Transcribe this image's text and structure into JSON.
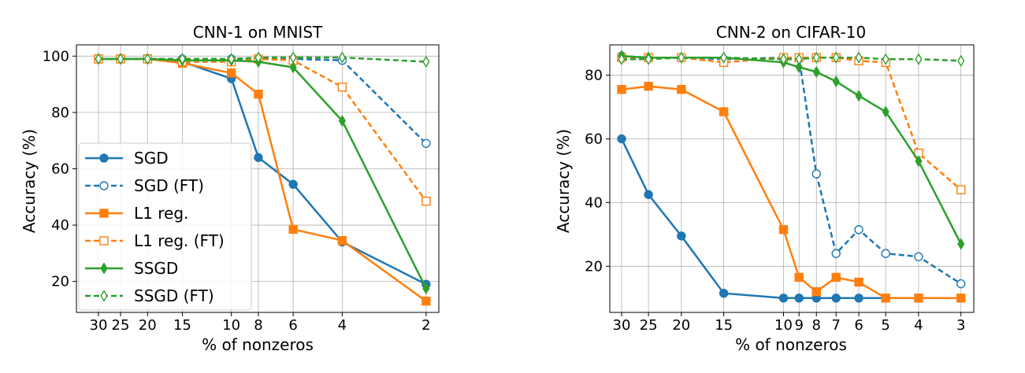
{
  "chart_data": [
    {
      "type": "line",
      "title": "CNN-1 on MNIST",
      "xlabel": "% of nonzeros",
      "ylabel": "Accuracy (%)",
      "x_scale": "log",
      "x_inverted": true,
      "xlim": [
        36,
        1.8
      ],
      "ylim": [
        9,
        104
      ],
      "grid": true,
      "legend_position": "lower-left",
      "xticks": [
        30,
        25,
        20,
        15,
        10,
        8,
        6,
        4,
        2
      ],
      "xtick_labels": [
        "30",
        "25",
        "20",
        "15",
        "10",
        "8",
        "6",
        "4",
        "2"
      ],
      "yticks": [
        20,
        40,
        60,
        80,
        100
      ],
      "ytick_labels": [
        "20",
        "40",
        "60",
        "80",
        "100"
      ],
      "x": [
        30,
        25,
        20,
        15,
        10,
        8,
        6,
        4,
        2
      ],
      "series": [
        {
          "name": "SGD",
          "color": "#1f77b4",
          "dashed": false,
          "marker": "circle",
          "filled": true,
          "values": [
            99,
            99,
            99,
            98,
            92,
            64,
            54.5,
            34,
            19
          ]
        },
        {
          "name": "SGD (FT)",
          "color": "#1f77b4",
          "dashed": true,
          "marker": "circle",
          "filled": false,
          "values": [
            99,
            99,
            99,
            99,
            99,
            99,
            99,
            98.5,
            69
          ]
        },
        {
          "name": "L1 reg.",
          "color": "#ff7f0e",
          "dashed": false,
          "marker": "square",
          "filled": true,
          "values": [
            99,
            99,
            99,
            97.5,
            94,
            86.5,
            38.5,
            34.5,
            13
          ]
        },
        {
          "name": "L1 reg. (FT)",
          "color": "#ff7f0e",
          "dashed": true,
          "marker": "square",
          "filled": false,
          "values": [
            99,
            99,
            99,
            98,
            98,
            99,
            98.5,
            89,
            48.5
          ]
        },
        {
          "name": "SSGD",
          "color": "#2ca02c",
          "dashed": false,
          "marker": "diamond",
          "filled": true,
          "values": [
            99,
            99,
            99,
            98.5,
            98.5,
            98,
            96,
            77,
            17.5
          ]
        },
        {
          "name": "SSGD (FT)",
          "color": "#2ca02c",
          "dashed": true,
          "marker": "diamond",
          "filled": false,
          "values": [
            99,
            99,
            99,
            99,
            99,
            99.5,
            99.5,
            99.5,
            98
          ]
        }
      ]
    },
    {
      "type": "line",
      "title": "CNN-2 on CIFAR-10",
      "xlabel": "% of nonzeros",
      "ylabel": "Accuracy (%)",
      "x_scale": "log",
      "x_inverted": true,
      "xlim": [
        32.5,
        2.75
      ],
      "ylim": [
        5.5,
        89.5
      ],
      "grid": true,
      "xticks": [
        30,
        25,
        20,
        15,
        10,
        9,
        8,
        7,
        6,
        5,
        4,
        3
      ],
      "xtick_labels": [
        "30",
        "25",
        "20",
        "15",
        "10",
        "9",
        "8",
        "7",
        "6",
        "5",
        "4",
        "3"
      ],
      "yticks": [
        20,
        40,
        60,
        80
      ],
      "ytick_labels": [
        "20",
        "40",
        "60",
        "80"
      ],
      "x": [
        30,
        25,
        20,
        15,
        10,
        9,
        8,
        7,
        6,
        5,
        4,
        3
      ],
      "series": [
        {
          "name": "SGD",
          "color": "#1f77b4",
          "dashed": false,
          "marker": "circle",
          "filled": true,
          "values": [
            60,
            42.5,
            29.5,
            11.5,
            10,
            10,
            10,
            10,
            10,
            10,
            10,
            10
          ]
        },
        {
          "name": "SGD (FT)",
          "color": "#1f77b4",
          "dashed": true,
          "marker": "circle",
          "filled": false,
          "values": [
            86,
            85.5,
            85.5,
            85,
            85.5,
            85.5,
            49,
            24,
            31.5,
            24,
            23,
            14.5
          ]
        },
        {
          "name": "L1 reg.",
          "color": "#ff7f0e",
          "dashed": false,
          "marker": "square",
          "filled": true,
          "values": [
            75.5,
            76.5,
            75.5,
            68.5,
            31.5,
            16.5,
            12,
            16.5,
            15,
            10,
            10,
            10
          ]
        },
        {
          "name": "L1 reg. (FT)",
          "color": "#ff7f0e",
          "dashed": true,
          "marker": "square",
          "filled": false,
          "values": [
            85.5,
            85.5,
            85.5,
            84,
            85.5,
            85.5,
            85.5,
            85.5,
            84.5,
            84,
            55.5,
            44
          ]
        },
        {
          "name": "SSGD",
          "color": "#2ca02c",
          "dashed": false,
          "marker": "diamond",
          "filled": true,
          "values": [
            86,
            85.5,
            85.5,
            85.5,
            84,
            82.5,
            81,
            78,
            73.5,
            68.5,
            53,
            27
          ]
        },
        {
          "name": "SSGD (FT)",
          "color": "#2ca02c",
          "dashed": true,
          "marker": "diamond",
          "filled": false,
          "values": [
            85,
            85,
            85.5,
            85.5,
            85,
            85,
            85.5,
            85.5,
            85.5,
            85,
            85,
            84.5
          ]
        }
      ]
    }
  ]
}
